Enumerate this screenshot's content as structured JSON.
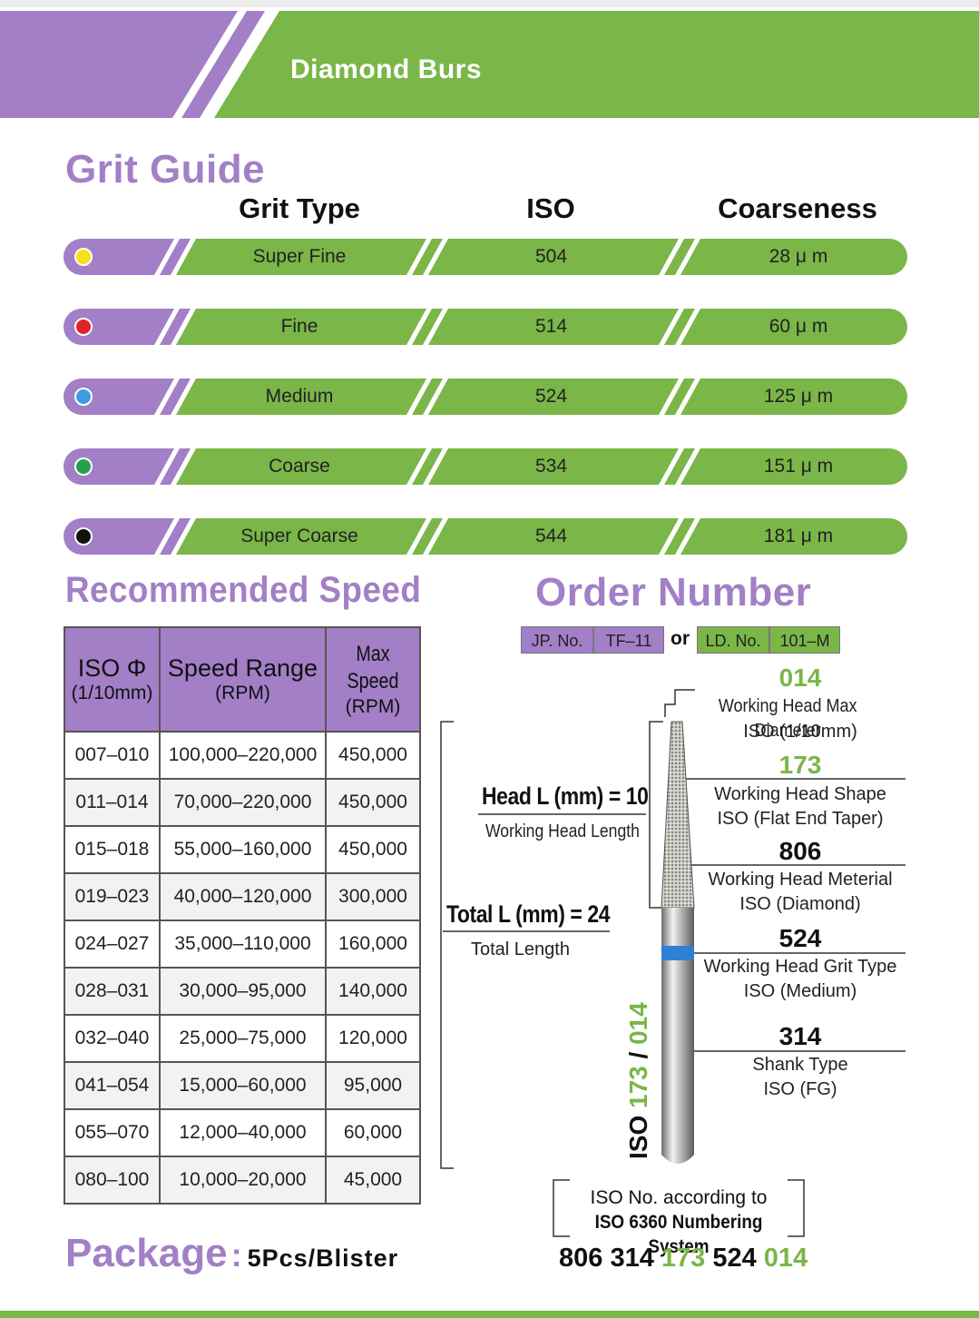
{
  "banner": {
    "title": "Diamond Burs"
  },
  "colors": {
    "purple": "#a27fc6",
    "green": "#7ab648"
  },
  "grit_guide": {
    "title": "Grit Guide",
    "headers": {
      "type": "Grit Type",
      "iso": "ISO",
      "coarseness": "Coarseness"
    },
    "rows": [
      {
        "type": "Super Fine",
        "iso": "504",
        "coarseness": "28 μ m",
        "dot_color": "#f4e01c"
      },
      {
        "type": "Fine",
        "iso": "514",
        "coarseness": "60 μ m",
        "dot_color": "#e0232b"
      },
      {
        "type": "Medium",
        "iso": "524",
        "coarseness": "125 μ m",
        "dot_color": "#3b9de0"
      },
      {
        "type": "Coarse",
        "iso": "534",
        "coarseness": "151 μ m",
        "dot_color": "#27a04a"
      },
      {
        "type": "Super Coarse",
        "iso": "544",
        "coarseness": "181 μ m",
        "dot_color": "#111111"
      }
    ]
  },
  "speed": {
    "title": "Recommended Speed",
    "headers": {
      "iso": "ISO Φ",
      "iso_unit": "(1/10mm)",
      "range": "Speed Range",
      "range_unit": "(RPM)",
      "max": "Max Speed",
      "max_unit": "(RPM)"
    },
    "rows": [
      [
        "007–010",
        "100,000–220,000",
        "450,000"
      ],
      [
        "011–014",
        "70,000–220,000",
        "450,000"
      ],
      [
        "015–018",
        "55,000–160,000",
        "450,000"
      ],
      [
        "019–023",
        "40,000–120,000",
        "300,000"
      ],
      [
        "024–027",
        "35,000–110,000",
        "160,000"
      ],
      [
        "028–031",
        "30,000–95,000",
        "140,000"
      ],
      [
        "032–040",
        "25,000–75,000",
        "120,000"
      ],
      [
        "041–054",
        "15,000–60,000",
        "95,000"
      ],
      [
        "055–070",
        "12,000–40,000",
        "60,000"
      ],
      [
        "080–100",
        "10,000–20,000",
        "45,000"
      ]
    ]
  },
  "order": {
    "title": "Order Number",
    "jp_label": "JP. No.",
    "jp_value": "TF–11",
    "or": "or",
    "ld_label": "LD. No.",
    "ld_value": "101–M",
    "head_length": "Head L (mm) = 10",
    "head_length_desc": "Working Head Length",
    "total_length": "Total L (mm) = 24",
    "total_length_desc": "Total Length",
    "vertical_label_iso": "ISO",
    "vertical_label_173": "173",
    "vertical_label_slash": " / ",
    "vertical_label_014": "014",
    "items": [
      {
        "code": "014",
        "line1": "Working Head Max Diameter",
        "line2": "ISO (1/10mm)"
      },
      {
        "code": "173",
        "line1": "Working Head Shape",
        "line2": "ISO (Flat End Taper)"
      },
      {
        "code": "806",
        "line1": "Working Head Meterial",
        "line2": "ISO (Diamond)"
      },
      {
        "code": "524",
        "line1": "Working Head Grit Type",
        "line2": "ISO (Medium)"
      },
      {
        "code": "314",
        "line1": "Shank Type",
        "line2": "ISO (FG)"
      }
    ],
    "iso_note_line1": "ISO No. according to",
    "iso_note_line2": "ISO 6360 Numbering System",
    "final_number": {
      "p1": "806 314 ",
      "p2": "173",
      "p3": " 524 ",
      "p4": "014"
    }
  },
  "package": {
    "label": "Package",
    "colon": ":",
    "value": "5Pcs/Blister"
  }
}
